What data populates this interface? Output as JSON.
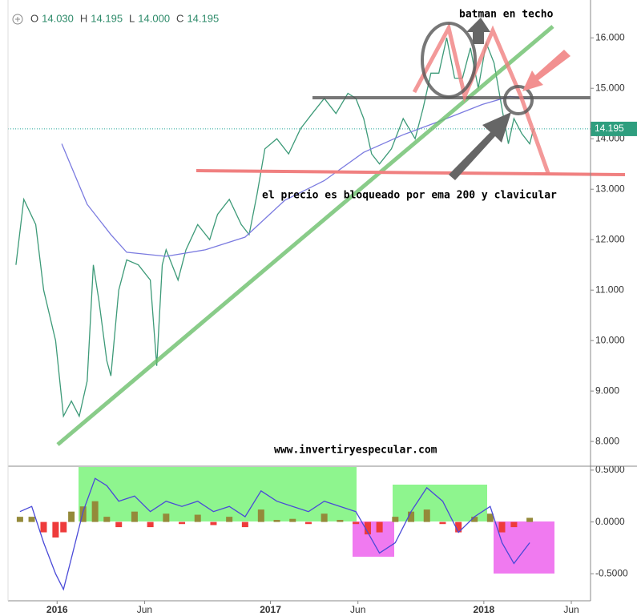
{
  "header": {
    "ohlc": [
      {
        "label": "O",
        "value": "14.030"
      },
      {
        "label": "H",
        "value": "14.195"
      },
      {
        "label": "L",
        "value": "14.000"
      },
      {
        "label": "C",
        "value": "14.195"
      }
    ]
  },
  "annotations": {
    "top": "batman en techo",
    "middle": "el precio es bloqueado por ema 200 y clavicular",
    "site": "www.invertiryespecular.com"
  },
  "chart_data": [
    {
      "type": "line",
      "xlim": [
        2015.77,
        2018.5
      ],
      "ylim": [
        7.51,
        16.75
      ],
      "yticks": [
        {
          "value": 8,
          "label": "8.000"
        },
        {
          "value": 9,
          "label": "9.000"
        },
        {
          "value": 10,
          "label": "10.000"
        },
        {
          "value": 11,
          "label": "11.000"
        },
        {
          "value": 12,
          "label": "12.000"
        },
        {
          "value": 13,
          "label": "13.000"
        },
        {
          "value": 14,
          "label": "14.000"
        },
        {
          "value": 15,
          "label": "15.000"
        },
        {
          "value": 16,
          "label": "16.000"
        }
      ],
      "series": [
        {
          "color": "#3d9a78",
          "x": [
            2015.807,
            2015.844,
            2015.9,
            2015.937,
            2015.993,
            2016.03,
            2016.067,
            2016.104,
            2016.141,
            2016.17,
            2016.196,
            2016.233,
            2016.252,
            2016.289,
            2016.326,
            2016.381,
            2016.437,
            2016.467,
            2016.493,
            2016.511,
            2016.567,
            2016.604,
            2016.659,
            2016.715,
            2016.752,
            2016.807,
            2016.863,
            2016.9,
            2016.937,
            2016.974,
            2017.03,
            2017.085,
            2017.141,
            2017.196,
            2017.252,
            2017.307,
            2017.363,
            2017.4,
            2017.437,
            2017.474,
            2017.511,
            2017.567,
            2017.622,
            2017.678,
            2017.715,
            2017.752,
            2017.789,
            2017.826,
            2017.863,
            2017.9,
            2017.937,
            2017.974,
            2018.011,
            2018.048,
            2018.085,
            2018.115,
            2018.141,
            2018.178,
            2018.215,
            2018.233
          ],
          "values": [
            11.5,
            12.8,
            12.3,
            11.0,
            10.0,
            8.5,
            8.8,
            8.5,
            9.2,
            11.5,
            10.8,
            9.6,
            9.3,
            11.0,
            11.6,
            11.5,
            11.2,
            9.5,
            11.5,
            11.8,
            11.2,
            11.8,
            12.3,
            12.0,
            12.5,
            12.8,
            12.3,
            12.1,
            12.9,
            13.8,
            14.0,
            13.7,
            14.2,
            14.5,
            14.8,
            14.5,
            14.9,
            14.8,
            14.4,
            13.7,
            13.5,
            13.8,
            14.4,
            14.0,
            14.6,
            15.3,
            15.3,
            16.0,
            15.2,
            15.2,
            15.8,
            15.0,
            15.9,
            15.5,
            14.6,
            13.9,
            14.4,
            14.1,
            13.9,
            14.195
          ]
        },
        {
          "color": "#7b7be0",
          "x": [
            2016.022,
            2016.141,
            2016.252,
            2016.326,
            2016.511,
            2016.696,
            2016.881,
            2017.067,
            2017.252,
            2017.437,
            2017.622,
            2017.807,
            2017.993,
            2018.122,
            2018.215
          ],
          "values": [
            13.9,
            12.7,
            12.1,
            11.75,
            11.67,
            11.8,
            12.05,
            12.78,
            13.17,
            13.73,
            14.08,
            14.37,
            14.68,
            14.84,
            14.79
          ]
        }
      ]
    },
    {
      "type": "bar",
      "xlim": [
        2015.77,
        2018.5
      ],
      "ylim": [
        -0.76,
        0.53
      ],
      "yticks": [
        {
          "value": 0.5,
          "label": "0.5000"
        },
        {
          "value": 0,
          "label": "0.0000"
        },
        {
          "value": -0.5,
          "label": "-0.5000"
        }
      ],
      "xticks": [
        {
          "value": 2016,
          "label": "2016"
        },
        {
          "value": 2016.41,
          "label": "Jun"
        },
        {
          "value": 2017,
          "label": "2017"
        },
        {
          "value": 2017.41,
          "label": "Jun"
        },
        {
          "value": 2018,
          "label": "2018"
        },
        {
          "value": 2018.41,
          "label": "Jun"
        }
      ],
      "x": [
        2015.826,
        2015.881,
        2015.937,
        2015.993,
        2016.03,
        2016.067,
        2016.122,
        2016.178,
        2016.233,
        2016.289,
        2016.363,
        2016.437,
        2016.511,
        2016.585,
        2016.659,
        2016.733,
        2016.807,
        2016.881,
        2016.956,
        2017.03,
        2017.104,
        2017.178,
        2017.252,
        2017.326,
        2017.4,
        2017.456,
        2017.511,
        2017.585,
        2017.659,
        2017.733,
        2017.807,
        2017.881,
        2017.956,
        2018.03,
        2018.085,
        2018.141,
        2018.215
      ],
      "values": [
        0.05,
        0.05,
        -0.1,
        -0.15,
        -0.1,
        0.1,
        0.15,
        0.2,
        0.05,
        -0.05,
        0.1,
        -0.05,
        0.08,
        -0.02,
        0.07,
        -0.03,
        0.05,
        -0.05,
        0.12,
        0.02,
        0.03,
        -0.02,
        0.08,
        0.02,
        -0.02,
        -0.12,
        -0.1,
        0.05,
        0.1,
        0.12,
        -0.02,
        -0.1,
        0.05,
        0.08,
        -0.1,
        -0.05,
        0.04
      ],
      "color_up": "#948a3a",
      "color_down": "#ee3b3b",
      "series": [
        {
          "color": "#4a4ad8",
          "values": [
            0.1,
            0.15,
            -0.2,
            -0.5,
            -0.65,
            -0.35,
            0.1,
            0.42,
            0.35,
            0.2,
            0.25,
            0.1,
            0.2,
            0.15,
            0.2,
            0.1,
            0.15,
            0.05,
            0.3,
            0.2,
            0.15,
            0.1,
            0.2,
            0.15,
            0.1,
            -0.1,
            -0.3,
            -0.2,
            0.1,
            0.33,
            0.2,
            -0.1,
            0.05,
            0.15,
            -0.2,
            -0.4,
            -0.2
          ]
        }
      ]
    }
  ]
}
